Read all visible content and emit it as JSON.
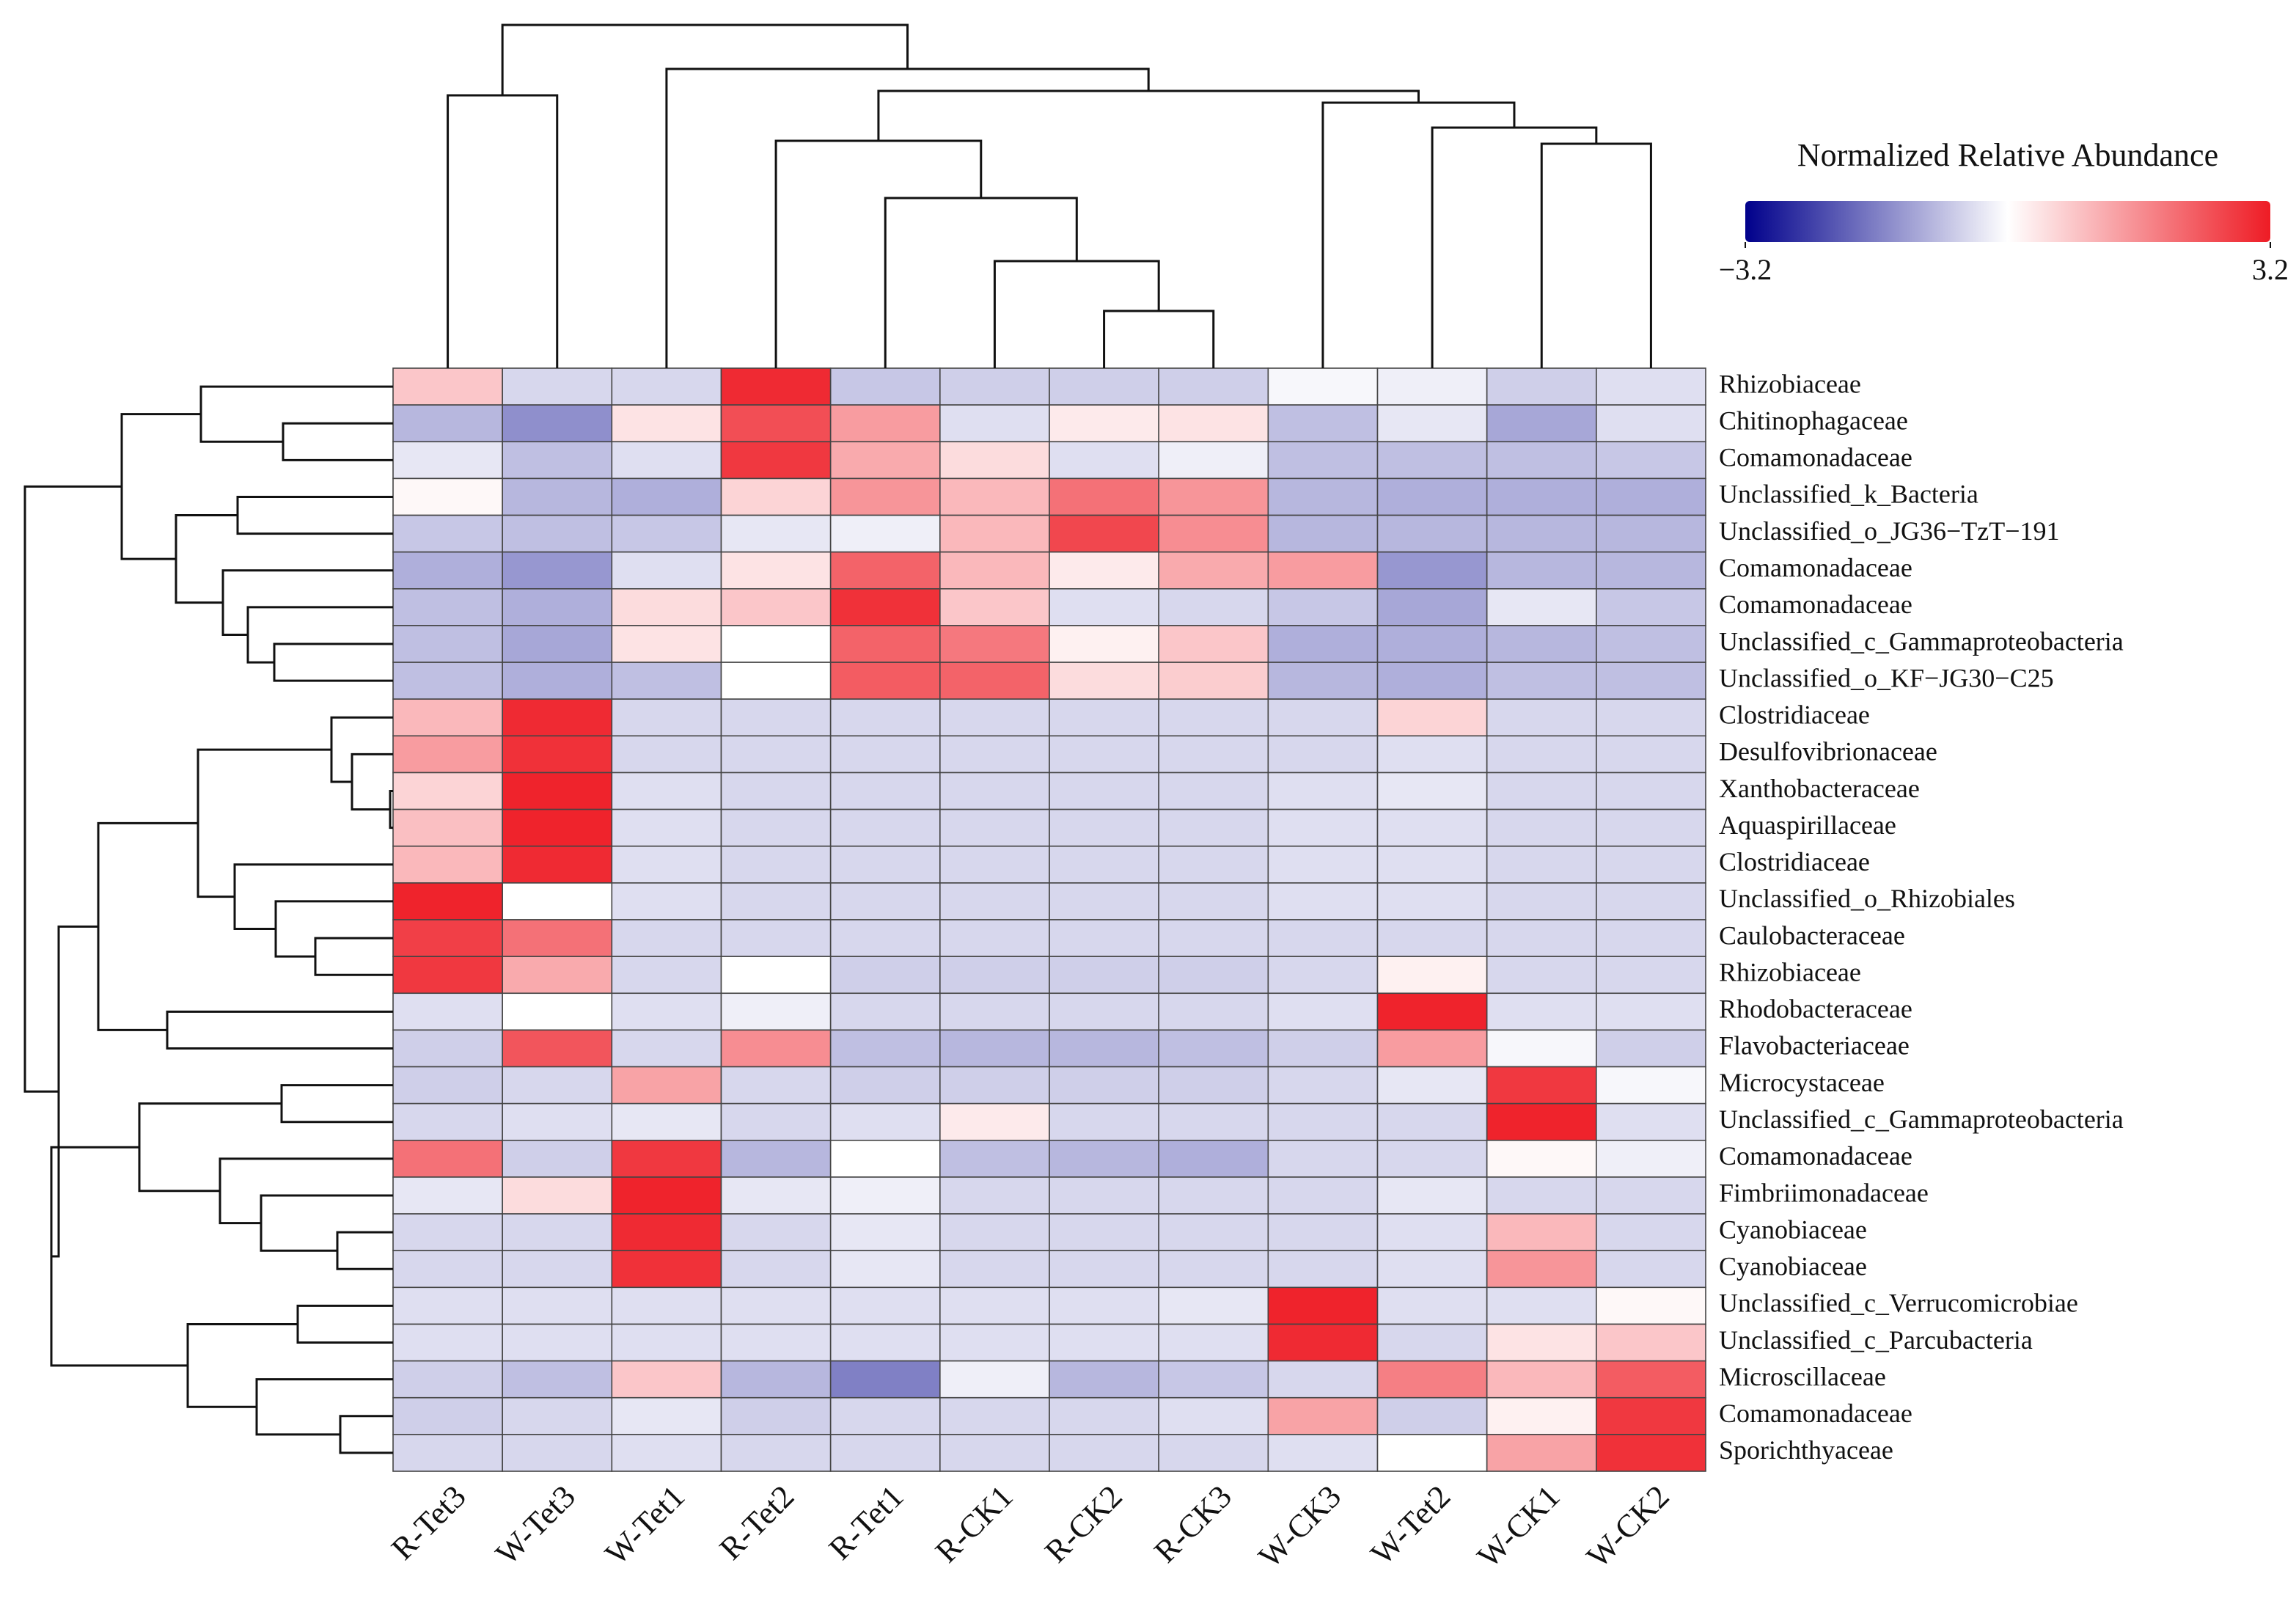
{
  "chart_data": {
    "type": "heatmap",
    "x": [
      "R-Tet3",
      "W-Tet3",
      "W-Tet1",
      "R-Tet2",
      "R-Tet1",
      "R-CK1",
      "R-CK2",
      "R-CK3",
      "W-CK3",
      "W-Tet2",
      "W-CK1",
      "W-CK2"
    ],
    "y": [
      "Rhizobiaceae",
      "Chitinophagaceae",
      "Comamonadaceae",
      "Unclassified_k_Bacteria",
      "Unclassified_o_JG36−TzT−191",
      "Comamonadaceae",
      "Comamonadaceae",
      "Unclassified_c_Gammaproteobacteria",
      "Unclassified_o_KF−JG30−C25",
      "Clostridiaceae",
      "Desulfovibrionaceae",
      "Xanthobacteraceae",
      "Aquaspirillaceae",
      "Clostridiaceae",
      "Unclassified_o_Rhizobiales",
      "Caulobacteraceae",
      "Rhizobiaceae",
      "Rhodobacteraceae",
      "Flavobacteriaceae",
      "Microcystaceae",
      "Unclassified_c_Gammaproteobacteria",
      "Comamonadaceae",
      "Fimbriimonadaceae",
      "Cyanobiaceae",
      "Cyanobiaceae",
      "Unclassified_c_Verrucomicrobiae",
      "Unclassified_c_Parcubacteria",
      "Microscillaceae",
      "Comamonadaceae",
      "Sporichthyaceae"
    ],
    "values": [
      [
        0.8,
        -0.5,
        -0.5,
        3.0,
        -0.7,
        -0.6,
        -0.6,
        -0.6,
        -0.1,
        -0.2,
        -0.6,
        -0.4
      ],
      [
        -0.9,
        -1.4,
        0.4,
        2.5,
        1.4,
        -0.4,
        0.3,
        0.4,
        -0.8,
        -0.3,
        -1.1,
        -0.4
      ],
      [
        -0.3,
        -0.8,
        -0.4,
        2.8,
        1.2,
        0.5,
        -0.4,
        -0.2,
        -0.8,
        -0.8,
        -0.8,
        -0.7
      ],
      [
        0.1,
        -0.9,
        -1.0,
        0.6,
        1.5,
        1.0,
        2.0,
        1.5,
        -0.9,
        -1.0,
        -1.0,
        -1.0
      ],
      [
        -0.7,
        -0.8,
        -0.7,
        -0.3,
        -0.2,
        1.0,
        2.6,
        1.6,
        -0.9,
        -0.9,
        -0.9,
        -0.9
      ],
      [
        -1.0,
        -1.3,
        -0.4,
        0.4,
        2.2,
        1.0,
        0.3,
        1.2,
        1.4,
        -1.3,
        -0.9,
        -0.9
      ],
      [
        -0.8,
        -1.0,
        0.5,
        0.8,
        2.9,
        0.8,
        -0.4,
        -0.5,
        -0.7,
        -1.1,
        -0.3,
        -0.7
      ],
      [
        -0.8,
        -1.1,
        0.4,
        0.0,
        2.2,
        1.9,
        0.2,
        0.8,
        -1.0,
        -1.0,
        -0.9,
        -0.8
      ],
      [
        -0.8,
        -1.0,
        -0.8,
        0.0,
        2.3,
        2.2,
        0.5,
        0.7,
        -0.9,
        -1.0,
        -0.8,
        -0.8
      ],
      [
        1.0,
        3.0,
        -0.5,
        -0.5,
        -0.5,
        -0.5,
        -0.5,
        -0.5,
        -0.5,
        0.6,
        -0.5,
        -0.5
      ],
      [
        1.4,
        2.9,
        -0.5,
        -0.5,
        -0.5,
        -0.5,
        -0.5,
        -0.5,
        -0.5,
        -0.4,
        -0.5,
        -0.5
      ],
      [
        0.6,
        3.1,
        -0.4,
        -0.5,
        -0.5,
        -0.5,
        -0.5,
        -0.5,
        -0.4,
        -0.3,
        -0.5,
        -0.5
      ],
      [
        0.9,
        3.1,
        -0.4,
        -0.5,
        -0.5,
        -0.5,
        -0.5,
        -0.5,
        -0.4,
        -0.4,
        -0.5,
        -0.5
      ],
      [
        1.0,
        3.0,
        -0.4,
        -0.5,
        -0.5,
        -0.5,
        -0.5,
        -0.5,
        -0.4,
        -0.4,
        -0.5,
        -0.5
      ],
      [
        3.1,
        0.0,
        -0.4,
        -0.5,
        -0.5,
        -0.5,
        -0.5,
        -0.5,
        -0.4,
        -0.4,
        -0.5,
        -0.5
      ],
      [
        2.7,
        2.0,
        -0.5,
        -0.5,
        -0.5,
        -0.5,
        -0.5,
        -0.5,
        -0.5,
        -0.5,
        -0.5,
        -0.5
      ],
      [
        2.8,
        1.2,
        -0.5,
        0.0,
        -0.6,
        -0.6,
        -0.6,
        -0.6,
        -0.5,
        0.2,
        -0.5,
        -0.5
      ],
      [
        -0.4,
        0.0,
        -0.4,
        -0.2,
        -0.5,
        -0.5,
        -0.5,
        -0.5,
        -0.4,
        3.1,
        -0.4,
        -0.4
      ],
      [
        -0.6,
        2.4,
        -0.5,
        1.6,
        -0.8,
        -0.9,
        -0.9,
        -0.8,
        -0.6,
        1.4,
        -0.1,
        -0.6
      ],
      [
        -0.6,
        -0.5,
        1.3,
        -0.5,
        -0.6,
        -0.6,
        -0.6,
        -0.6,
        -0.5,
        -0.3,
        2.8,
        -0.1
      ],
      [
        -0.5,
        -0.4,
        -0.3,
        -0.5,
        -0.4,
        0.3,
        -0.5,
        -0.5,
        -0.5,
        -0.5,
        3.1,
        -0.4
      ],
      [
        2.0,
        -0.6,
        2.8,
        -0.9,
        0.0,
        -0.8,
        -0.9,
        -1.0,
        -0.5,
        -0.5,
        0.1,
        -0.2
      ],
      [
        -0.3,
        0.5,
        3.1,
        -0.3,
        -0.2,
        -0.5,
        -0.5,
        -0.5,
        -0.5,
        -0.3,
        -0.5,
        -0.5
      ],
      [
        -0.5,
        -0.5,
        3.0,
        -0.5,
        -0.3,
        -0.5,
        -0.5,
        -0.5,
        -0.5,
        -0.4,
        1.0,
        -0.5
      ],
      [
        -0.5,
        -0.5,
        2.9,
        -0.5,
        -0.3,
        -0.5,
        -0.5,
        -0.5,
        -0.5,
        -0.4,
        1.5,
        -0.5
      ],
      [
        -0.4,
        -0.4,
        -0.4,
        -0.4,
        -0.4,
        -0.4,
        -0.4,
        -0.3,
        3.1,
        -0.4,
        -0.4,
        0.1
      ],
      [
        -0.4,
        -0.4,
        -0.4,
        -0.4,
        -0.4,
        -0.4,
        -0.4,
        -0.4,
        3.0,
        -0.5,
        0.4,
        0.8
      ],
      [
        -0.6,
        -0.8,
        0.8,
        -0.9,
        -1.6,
        -0.2,
        -0.9,
        -0.7,
        -0.5,
        1.8,
        1.0,
        2.3
      ],
      [
        -0.6,
        -0.5,
        -0.3,
        -0.6,
        -0.5,
        -0.5,
        -0.5,
        -0.4,
        1.3,
        -0.6,
        0.2,
        2.8
      ],
      [
        -0.5,
        -0.5,
        -0.4,
        -0.5,
        -0.5,
        -0.5,
        -0.5,
        -0.5,
        -0.4,
        0.0,
        1.3,
        2.9
      ]
    ],
    "colorbar_title": "Normalized Relative Abundance",
    "zlim": [
      -3.2,
      3.2
    ],
    "zticks": [
      {
        "value": -3.2,
        "label": "−3.2"
      },
      3.2
    ],
    "colors": [
      "#00008b",
      "#ffffff",
      "#ee1c25"
    ]
  }
}
